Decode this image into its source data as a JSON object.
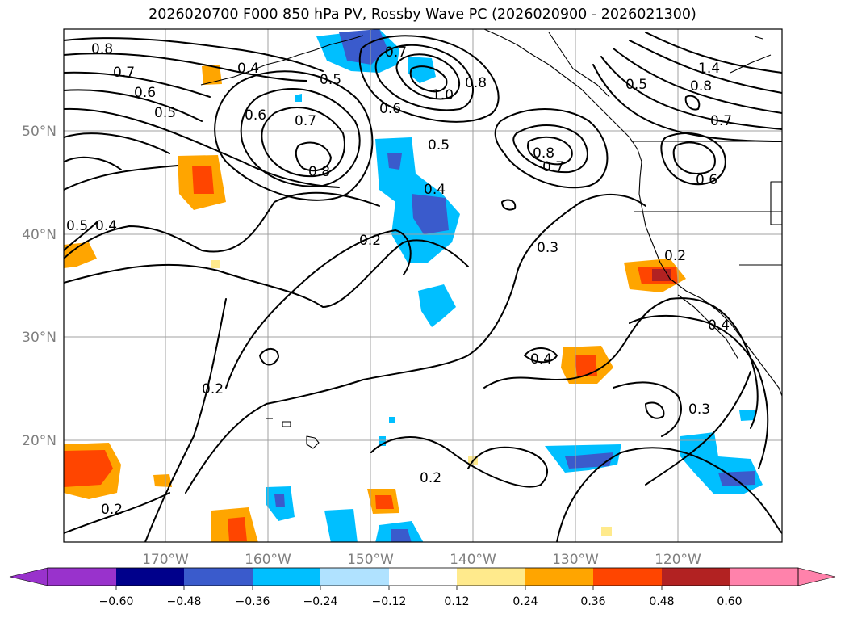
{
  "title": "2026020700 F000 850 hPa PV, Rossby Wave PC (2026020900 - 2026021300)",
  "colors": {
    "neg_060": "#9932cc",
    "neg_048": "#00008b",
    "neg_036": "#3a5bcc",
    "neg_024": "#00bfff",
    "neg_012": "#b0e2ff",
    "neutral": "#ffffff",
    "pos_012": "#ffea8c",
    "pos_024": "#ffa500",
    "pos_036": "#ff4500",
    "pos_048": "#b22222",
    "pos_060": "#ff82ab"
  },
  "map": {
    "lat_labels": [
      "50°N",
      "40°N",
      "30°N",
      "20°N"
    ],
    "lon_labels": [
      "170°W",
      "160°W",
      "150°W",
      "140°W",
      "130°W",
      "120°W"
    ],
    "contour_labels": [
      "0.8",
      "0.7",
      "0.6",
      "0.5",
      "0.4",
      "0.5",
      "0.7",
      "1.0",
      "0.8",
      "0.6",
      "0.7",
      "0.6",
      "0.8",
      "0.5",
      "0.8",
      "0.7",
      "1.4",
      "0.8",
      "0.5",
      "0.7",
      "0.6",
      "0.5",
      "0.4",
      "0.4",
      "0.2",
      "0.3",
      "0.2",
      "0.4",
      "0.4",
      "0.3",
      "0.2",
      "0.2",
      "0.2"
    ]
  },
  "colorbar": {
    "ticks": [
      "−0.60",
      "−0.48",
      "−0.36",
      "−0.24",
      "−0.12",
      "0.12",
      "0.24",
      "0.36",
      "0.48",
      "0.60"
    ]
  }
}
